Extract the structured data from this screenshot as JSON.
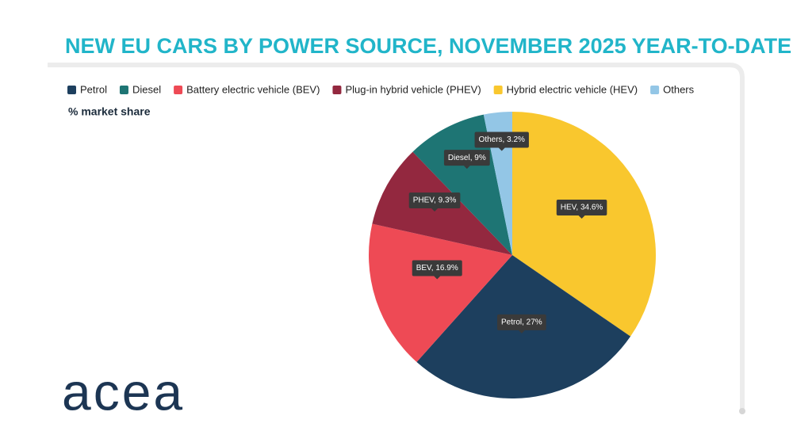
{
  "chart_data": {
    "type": "pie",
    "title": "NEW EU CARS BY POWER SOURCE, NOVEMBER 2025 YEAR-TO-DATE",
    "subtitle": "% market share",
    "categories": [
      "Petrol",
      "Diesel",
      "Battery electric vehicle (BEV)",
      "Plug-in hybrid vehicle (PHEV)",
      "Hybrid electric vehicle (HEV)",
      "Others"
    ],
    "values": [
      27,
      9,
      16.9,
      9.3,
      34.6,
      3.2
    ],
    "value_labels": [
      "Petrol, 27%",
      "Diesel, 9%",
      "BEV, 16.9%",
      "PHEV, 9.3%",
      "HEV, 34.6%",
      "Others, 3.2%"
    ],
    "colors": [
      "#1d3f5e",
      "#1e7574",
      "#ee4a55",
      "#93283f",
      "#f9c72e",
      "#93c6e6"
    ],
    "legend": "top"
  },
  "logo": "acea"
}
